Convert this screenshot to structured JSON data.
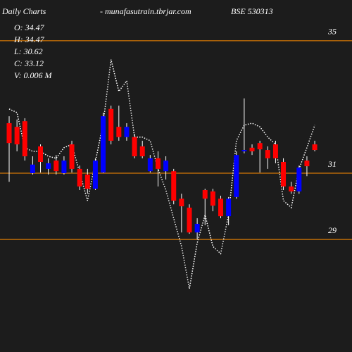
{
  "chart_data": {
    "type": "candlestick",
    "title": "Daily Charts",
    "subtitle": "- munafasutrain.tbrjar.com",
    "symbol": "BSE 530313",
    "info": [
      "O: 34.47",
      "H: 34.47",
      "L: 30.62",
      "C: 33.12",
      "V: 0.006  M"
    ],
    "up_color": "#0000ff",
    "down_color": "#ff0000",
    "wick_color": "#ffffff",
    "line_color": "#ffffff",
    "grid_color": "#ff8c00",
    "ylim": [
      25.6,
      36.23
    ],
    "yticks": [
      35,
      31,
      29
    ],
    "grid": true,
    "open": [
      32.51,
      32.4,
      32.57,
      31.0,
      31.81,
      31.13,
      31.38,
      31.0,
      31.87,
      31.13,
      30.96,
      30.53,
      31.02,
      32.94,
      32.4,
      32.09,
      32.09,
      31.81,
      31.06,
      31.45,
      31.06,
      31.06,
      30.23,
      29.96,
      29.21,
      30.49,
      30.45,
      30.23,
      29.7,
      30.28,
      31.66,
      31.77,
      31.91,
      31.7,
      31.87,
      31.34,
      30.6,
      30.45,
      31.38,
      31.87
    ],
    "high": [
      32.72,
      32.62,
      32.66,
      31.51,
      31.87,
      31.45,
      31.55,
      31.51,
      31.98,
      31.23,
      31.13,
      31.45,
      32.83,
      33.04,
      33.04,
      32.51,
      32.19,
      31.98,
      31.55,
      31.66,
      31.51,
      31.13,
      30.38,
      30.06,
      29.64,
      30.53,
      30.53,
      30.32,
      30.28,
      31.66,
      33.26,
      31.87,
      31.98,
      31.81,
      31.98,
      31.45,
      30.74,
      31.23,
      31.51,
      31.98
    ],
    "low": [
      30.74,
      31.66,
      31.38,
      30.96,
      31.02,
      30.96,
      30.96,
      30.96,
      31.02,
      30.49,
      30.38,
      30.49,
      31.0,
      31.87,
      31.98,
      31.98,
      31.45,
      31.45,
      31.02,
      30.6,
      30.81,
      30.06,
      29.21,
      29.17,
      29.0,
      29.43,
      29.85,
      29.64,
      29.43,
      30.23,
      31.6,
      31.55,
      31.02,
      31.13,
      31.3,
      30.49,
      30.38,
      30.38,
      30.91,
      31.66
    ],
    "close": [
      31.91,
      31.87,
      31.51,
      31.26,
      31.34,
      31.3,
      31.06,
      31.38,
      31.13,
      30.6,
      30.53,
      31.38,
      32.72,
      31.98,
      32.09,
      32.4,
      31.51,
      31.51,
      31.45,
      31.13,
      31.38,
      30.17,
      30.0,
      29.21,
      29.47,
      30.23,
      30.02,
      29.7,
      30.23,
      31.55,
      31.7,
      31.66,
      31.72,
      31.45,
      31.45,
      30.6,
      30.45,
      31.17,
      31.21,
      31.7
    ],
    "line": [
      32.94,
      32.83,
      31.77,
      31.66,
      31.66,
      31.51,
      31.45,
      31.77,
      31.87,
      31.02,
      30.17,
      31.34,
      32.51,
      34.43,
      33.47,
      33.79,
      32.09,
      32.09,
      31.98,
      31.13,
      30.49,
      29.64,
      28.79,
      27.51,
      28.89,
      29.74,
      28.79,
      28.57,
      29.74,
      31.98,
      32.45,
      32.51,
      32.4,
      32.09,
      31.87,
      30.17,
      29.96,
      31.13,
      31.77,
      32.45
    ]
  }
}
